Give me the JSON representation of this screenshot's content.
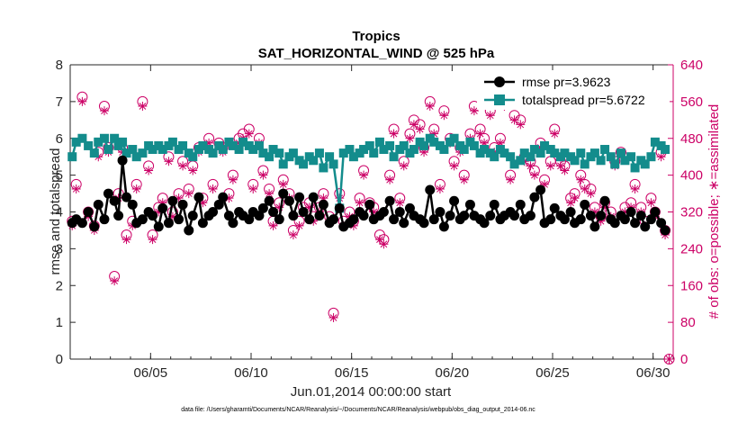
{
  "chart_data": {
    "type": "line",
    "title": "Tropics",
    "subtitle": "SAT_HORIZONTAL_WIND @ 525 hPa",
    "xlabel": "Jun.01,2014 00:00:00 start",
    "ylabel": "rmse and totalspread",
    "ylabel_right": "# of obs: o=possible; ∗=assimilated",
    "footnote": "data file: /Users/gharamti/Documents/NCAR/Reanalysis/~/Documents/NCAR/Reanalysis/webpub/obs_diag_output_2014-06.nc",
    "xlim": [
      1,
      31
    ],
    "ylim": [
      0,
      8
    ],
    "ylim_right": [
      0,
      640
    ],
    "xticks": [
      {
        "value": 5,
        "label": "06/05"
      },
      {
        "value": 10,
        "label": "06/10"
      },
      {
        "value": 15,
        "label": "06/15"
      },
      {
        "value": 20,
        "label": "06/20"
      },
      {
        "value": 25,
        "label": "06/25"
      },
      {
        "value": 30,
        "label": "06/30"
      }
    ],
    "yticks": [
      "0",
      "1",
      "2",
      "3",
      "4",
      "5",
      "6",
      "7",
      "8"
    ],
    "yticks_right": [
      "0",
      "80",
      "160",
      "240",
      "320",
      "400",
      "480",
      "560",
      "640"
    ],
    "colors": {
      "rmse": "#000000",
      "spread": "#138c8c",
      "obs": "#cc0066"
    },
    "series": [
      {
        "name": "rmse",
        "legend": "rmse pr=3.9623",
        "x": [
          1.1,
          1.3,
          1.6,
          1.9,
          2.2,
          2.4,
          2.7,
          2.9,
          3.2,
          3.4,
          3.6,
          3.8,
          4.1,
          4.3,
          4.6,
          4.9,
          5.1,
          5.4,
          5.6,
          5.9,
          6.1,
          6.4,
          6.6,
          6.9,
          7.1,
          7.4,
          7.6,
          7.9,
          8.1,
          8.4,
          8.6,
          8.9,
          9.1,
          9.4,
          9.6,
          9.9,
          10.1,
          10.4,
          10.6,
          10.9,
          11.1,
          11.4,
          11.6,
          11.9,
          12.1,
          12.4,
          12.6,
          12.9,
          13.1,
          13.4,
          13.6,
          13.9,
          14.1,
          14.4,
          14.6,
          14.9,
          15.1,
          15.4,
          15.6,
          15.9,
          16.1,
          16.4,
          16.6,
          16.9,
          17.1,
          17.4,
          17.6,
          17.9,
          18.1,
          18.4,
          18.6,
          18.9,
          19.1,
          19.4,
          19.6,
          19.9,
          20.1,
          20.4,
          20.6,
          20.9,
          21.1,
          21.4,
          21.6,
          21.9,
          22.1,
          22.4,
          22.6,
          22.9,
          23.1,
          23.4,
          23.6,
          23.9,
          24.1,
          24.4,
          24.6,
          24.9,
          25.1,
          25.4,
          25.6,
          25.9,
          26.1,
          26.4,
          26.6,
          26.9,
          27.1,
          27.4,
          27.6,
          27.9,
          28.1,
          28.4,
          28.6,
          28.9,
          29.1,
          29.4,
          29.6,
          29.9,
          30.1,
          30.4,
          30.6
        ],
        "values": [
          3.7,
          3.8,
          3.7,
          4.0,
          3.6,
          4.2,
          3.8,
          4.5,
          4.3,
          3.9,
          5.4,
          4.4,
          4.2,
          3.7,
          3.8,
          4.0,
          3.9,
          3.6,
          4.1,
          3.7,
          4.3,
          3.8,
          4.2,
          3.5,
          3.9,
          4.4,
          3.7,
          3.9,
          4.0,
          4.2,
          4.4,
          3.9,
          3.7,
          4.0,
          3.9,
          3.8,
          4.0,
          3.9,
          4.1,
          4.3,
          4.0,
          3.8,
          4.5,
          4.3,
          3.9,
          4.4,
          4.0,
          3.8,
          4.4,
          3.9,
          4.2,
          3.7,
          3.8,
          4.1,
          3.6,
          3.7,
          3.8,
          4.0,
          3.9,
          4.2,
          3.8,
          3.9,
          4.0,
          4.3,
          3.8,
          4.0,
          3.7,
          4.1,
          3.9,
          3.8,
          3.7,
          4.6,
          3.8,
          4.0,
          3.6,
          3.9,
          4.3,
          3.8,
          3.9,
          4.2,
          3.9,
          3.8,
          3.7,
          3.9,
          4.2,
          3.8,
          3.9,
          4.0,
          3.9,
          4.2,
          3.8,
          3.9,
          4.4,
          4.6,
          3.7,
          3.8,
          4.1,
          3.9,
          3.8,
          4.0,
          3.7,
          3.8,
          4.2,
          3.9,
          3.6,
          3.9,
          4.3,
          3.8,
          3.7,
          3.9,
          3.8,
          4.0,
          3.7,
          3.9,
          3.6,
          3.8,
          4.0,
          3.7,
          3.5
        ]
      },
      {
        "name": "totalspread",
        "legend": "totalspread pr=5.6722",
        "x": [
          1.1,
          1.3,
          1.6,
          1.9,
          2.2,
          2.4,
          2.7,
          2.9,
          3.2,
          3.4,
          3.6,
          3.8,
          4.1,
          4.3,
          4.6,
          4.9,
          5.1,
          5.4,
          5.6,
          5.9,
          6.1,
          6.4,
          6.6,
          6.9,
          7.1,
          7.4,
          7.6,
          7.9,
          8.1,
          8.4,
          8.6,
          8.9,
          9.1,
          9.4,
          9.6,
          9.9,
          10.1,
          10.4,
          10.6,
          10.9,
          11.1,
          11.4,
          11.6,
          11.9,
          12.1,
          12.4,
          12.6,
          12.9,
          13.1,
          13.4,
          13.6,
          13.9,
          14.1,
          14.4,
          14.6,
          14.9,
          15.1,
          15.4,
          15.6,
          15.9,
          16.1,
          16.4,
          16.6,
          16.9,
          17.1,
          17.4,
          17.6,
          17.9,
          18.1,
          18.4,
          18.6,
          18.9,
          19.1,
          19.4,
          19.6,
          19.9,
          20.1,
          20.4,
          20.6,
          20.9,
          21.1,
          21.4,
          21.6,
          21.9,
          22.1,
          22.4,
          22.6,
          22.9,
          23.1,
          23.4,
          23.6,
          23.9,
          24.1,
          24.4,
          24.6,
          24.9,
          25.1,
          25.4,
          25.6,
          25.9,
          26.1,
          26.4,
          26.6,
          26.9,
          27.1,
          27.4,
          27.6,
          27.9,
          28.1,
          28.4,
          28.6,
          28.9,
          29.1,
          29.4,
          29.6,
          29.9,
          30.1,
          30.4,
          30.6
        ],
        "values": [
          5.5,
          5.9,
          6.0,
          5.8,
          5.6,
          5.9,
          6.0,
          5.7,
          6.0,
          5.8,
          5.9,
          5.6,
          5.7,
          5.5,
          5.6,
          5.8,
          5.7,
          5.8,
          5.7,
          5.8,
          5.9,
          5.7,
          5.8,
          5.6,
          5.5,
          5.7,
          5.8,
          5.7,
          5.6,
          5.8,
          5.7,
          5.9,
          5.8,
          5.7,
          5.9,
          5.8,
          5.7,
          5.8,
          5.6,
          5.5,
          5.7,
          5.6,
          5.3,
          5.5,
          5.6,
          5.4,
          5.3,
          5.5,
          5.4,
          5.6,
          5.2,
          5.5,
          5.3,
          4.1,
          5.6,
          5.7,
          5.5,
          5.6,
          5.7,
          5.8,
          5.6,
          5.9,
          5.7,
          5.8,
          5.5,
          5.7,
          5.8,
          5.6,
          5.7,
          5.9,
          5.8,
          6.0,
          5.9,
          5.8,
          5.7,
          5.9,
          6.0,
          5.8,
          5.7,
          5.9,
          5.8,
          5.6,
          5.7,
          5.6,
          5.5,
          5.7,
          5.6,
          5.5,
          5.3,
          5.4,
          5.6,
          5.5,
          5.7,
          5.6,
          5.8,
          5.7,
          5.6,
          5.5,
          5.6,
          5.5,
          5.4,
          5.6,
          5.3,
          5.5,
          5.6,
          5.4,
          5.7,
          5.5,
          5.3,
          5.6,
          5.4,
          5.5,
          5.2,
          5.4,
          5.3,
          5.5,
          5.9,
          5.8,
          5.7
        ]
      },
      {
        "name": "obs_possible",
        "axis": "right",
        "x": [
          1.1,
          1.3,
          1.6,
          1.9,
          2.2,
          2.4,
          2.7,
          2.9,
          3.2,
          3.4,
          3.6,
          3.8,
          4.1,
          4.3,
          4.6,
          4.9,
          5.1,
          5.4,
          5.6,
          5.9,
          6.1,
          6.4,
          6.6,
          6.9,
          7.1,
          7.4,
          7.6,
          7.9,
          8.1,
          8.4,
          8.6,
          8.9,
          9.1,
          9.4,
          9.6,
          9.9,
          10.1,
          10.4,
          10.6,
          10.9,
          11.1,
          11.4,
          11.6,
          11.9,
          12.1,
          12.4,
          12.6,
          12.9,
          13.1,
          13.4,
          13.6,
          13.9,
          14.1,
          14.4,
          14.6,
          14.9,
          15.1,
          15.4,
          15.6,
          15.9,
          16.1,
          16.4,
          16.6,
          16.9,
          17.1,
          17.4,
          17.6,
          17.9,
          18.1,
          18.4,
          18.6,
          18.9,
          19.1,
          19.4,
          19.6,
          19.9,
          20.1,
          20.4,
          20.6,
          20.9,
          21.1,
          21.4,
          21.6,
          21.9,
          22.1,
          22.4,
          22.6,
          22.9,
          23.1,
          23.4,
          23.6,
          23.9,
          24.1,
          24.4,
          24.6,
          24.9,
          25.1,
          25.4,
          25.6,
          25.9,
          26.1,
          26.4,
          26.6,
          26.9,
          27.1,
          27.4,
          27.6,
          27.9,
          28.1,
          28.4,
          28.6,
          28.9,
          29.1,
          29.4,
          29.6,
          29.9,
          30.1,
          30.4,
          30.6,
          30.8
        ],
        "values": [
          300,
          380,
          570,
          320,
          290,
          450,
          550,
          460,
          180,
          360,
          460,
          270,
          300,
          380,
          560,
          420,
          270,
          330,
          350,
          440,
          320,
          360,
          430,
          370,
          420,
          460,
          350,
          480,
          380,
          470,
          460,
          360,
          400,
          480,
          490,
          500,
          380,
          480,
          410,
          370,
          300,
          340,
          390,
          360,
          280,
          300,
          330,
          340,
          310,
          330,
          360,
          310,
          100,
          360,
          300,
          320,
          300,
          350,
          410,
          340,
          330,
          270,
          260,
          400,
          500,
          350,
          430,
          490,
          520,
          510,
          460,
          560,
          500,
          380,
          540,
          480,
          430,
          460,
          400,
          490,
          550,
          500,
          480,
          540,
          460,
          480,
          560,
          400,
          530,
          520,
          440,
          430,
          410,
          470,
          390,
          430,
          500,
          430,
          420,
          350,
          360,
          400,
          380,
          370,
          330,
          310,
          340,
          320,
          430,
          450,
          330,
          340,
          380,
          330,
          300,
          350,
          320,
          450,
          280,
          0
        ]
      },
      {
        "name": "obs_assimilated",
        "axis": "right",
        "x": [
          1.1,
          1.3,
          1.6,
          1.9,
          2.2,
          2.4,
          2.7,
          2.9,
          3.2,
          3.4,
          3.6,
          3.8,
          4.1,
          4.3,
          4.6,
          4.9,
          5.1,
          5.4,
          5.6,
          5.9,
          6.1,
          6.4,
          6.6,
          6.9,
          7.1,
          7.4,
          7.6,
          7.9,
          8.1,
          8.4,
          8.6,
          8.9,
          9.1,
          9.4,
          9.6,
          9.9,
          10.1,
          10.4,
          10.6,
          10.9,
          11.1,
          11.4,
          11.6,
          11.9,
          12.1,
          12.4,
          12.6,
          12.9,
          13.1,
          13.4,
          13.6,
          13.9,
          14.1,
          14.4,
          14.6,
          14.9,
          15.1,
          15.4,
          15.6,
          15.9,
          16.1,
          16.4,
          16.6,
          16.9,
          17.1,
          17.4,
          17.6,
          17.9,
          18.1,
          18.4,
          18.6,
          18.9,
          19.1,
          19.4,
          19.6,
          19.9,
          20.1,
          20.4,
          20.6,
          20.9,
          21.1,
          21.4,
          21.6,
          21.9,
          22.1,
          22.4,
          22.6,
          22.9,
          23.1,
          23.4,
          23.6,
          23.9,
          24.1,
          24.4,
          24.6,
          24.9,
          25.1,
          25.4,
          25.6,
          25.9,
          26.1,
          26.4,
          26.6,
          26.9,
          27.1,
          27.4,
          27.6,
          27.9,
          28.1,
          28.4,
          28.6,
          28.9,
          29.1,
          29.4,
          29.6,
          29.9,
          30.1,
          30.4,
          30.6,
          30.8
        ],
        "values": [
          290,
          370,
          560,
          310,
          280,
          440,
          540,
          450,
          170,
          350,
          450,
          260,
          290,
          370,
          550,
          410,
          260,
          320,
          340,
          430,
          310,
          350,
          420,
          360,
          410,
          450,
          340,
          470,
          370,
          460,
          450,
          350,
          390,
          470,
          480,
          490,
          370,
          470,
          400,
          360,
          290,
          330,
          380,
          350,
          270,
          290,
          320,
          330,
          300,
          320,
          350,
          300,
          90,
          350,
          290,
          310,
          290,
          340,
          400,
          330,
          320,
          260,
          250,
          390,
          490,
          340,
          420,
          480,
          510,
          500,
          450,
          550,
          490,
          370,
          530,
          470,
          420,
          450,
          390,
          480,
          540,
          490,
          470,
          530,
          450,
          470,
          550,
          390,
          520,
          510,
          430,
          420,
          400,
          460,
          380,
          420,
          490,
          420,
          410,
          340,
          350,
          390,
          370,
          360,
          320,
          300,
          330,
          310,
          420,
          440,
          320,
          330,
          370,
          320,
          290,
          340,
          310,
          440,
          270,
          0
        ]
      }
    ]
  }
}
